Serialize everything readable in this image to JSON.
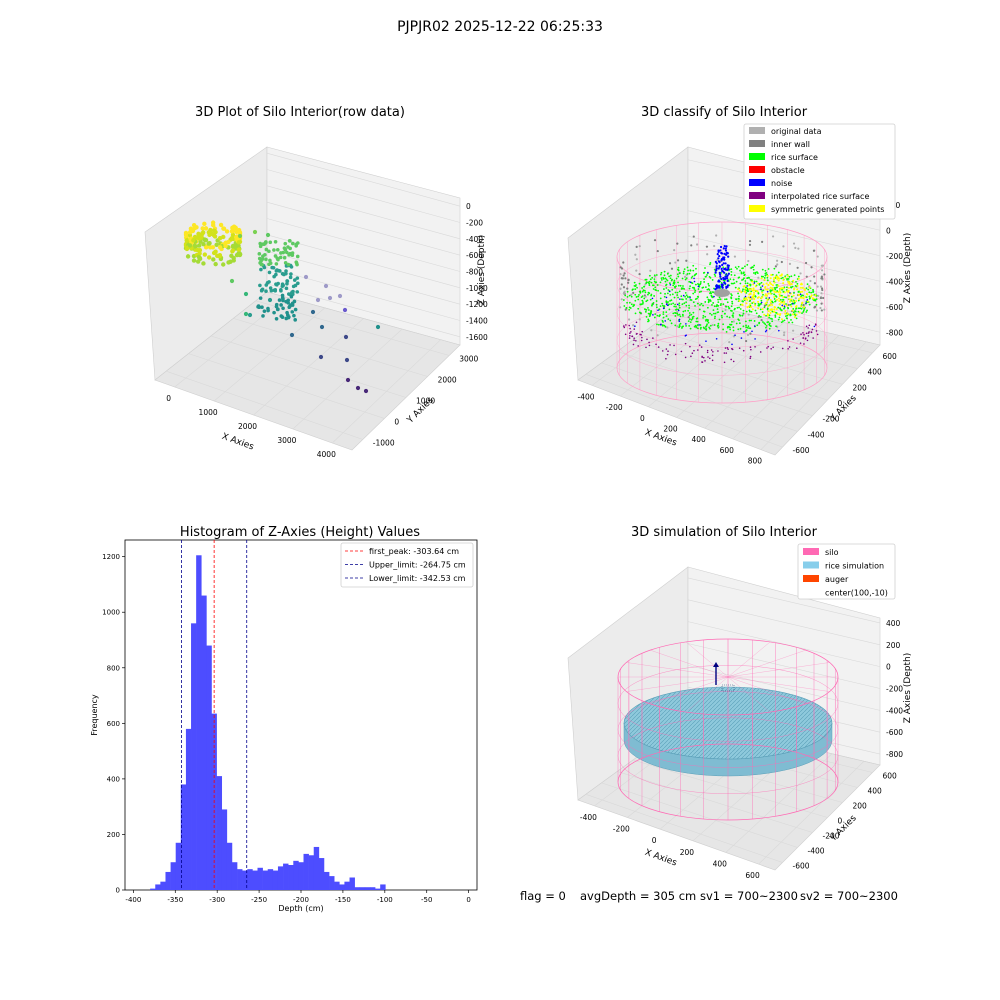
{
  "figure": {
    "suptitle": "PJPJR02 2025-12-22 06:25:33",
    "footer": {
      "flag": "flag = 0",
      "avg_depth": "avgDepth = 305 cm",
      "sv1": "sv1 = 700~2300",
      "sv2": "sv2 = 700~2300"
    }
  },
  "chart_data": [
    {
      "type": "scatter",
      "projection": "3d",
      "title": "3D Plot of Silo Interior(row data)",
      "xlabel": "X Axies",
      "ylabel": "Y Axies",
      "zlabel": "Z Axies (Depth)",
      "x_ticks": [
        "0",
        "1000",
        "2000",
        "3000",
        "4000"
      ],
      "y_ticks": [
        "-1000",
        "0",
        "1000",
        "2000",
        "3000"
      ],
      "z_ticks": [
        "0",
        "-200",
        "-400",
        "-600",
        "-800",
        "-1000",
        "-1200",
        "-1400",
        "-1600"
      ],
      "colormap": "viridis",
      "grid": true
    },
    {
      "type": "scatter",
      "projection": "3d",
      "title": "3D classify of Silo Interior",
      "xlabel": "X Axies",
      "ylabel": "Y Axies",
      "zlabel": "Z Axies (Depth)",
      "x_ticks": [
        "-400",
        "-200",
        "0",
        "200",
        "400",
        "600",
        "800"
      ],
      "y_ticks": [
        "-600",
        "-400",
        "-200",
        "0",
        "200",
        "400",
        "600"
      ],
      "z_ticks": [
        "200",
        "0",
        "-200",
        "-400",
        "-600",
        "-800"
      ],
      "legend_position": "upper-right",
      "legend": [
        {
          "label": "original data",
          "color": "#b0b0b0"
        },
        {
          "label": "inner wall",
          "color": "#808080"
        },
        {
          "label": "rice surface",
          "color": "#00ff00"
        },
        {
          "label": "obstacle",
          "color": "#ff0000"
        },
        {
          "label": "noise",
          "color": "#0000ff"
        },
        {
          "label": "interpolated rice surface",
          "color": "#800080"
        },
        {
          "label": "symmetric generated points",
          "color": "#ffff00"
        }
      ],
      "grid": true
    },
    {
      "type": "bar",
      "subtype": "histogram",
      "title": "Histogram of Z-Axies (Height) Values",
      "xlabel": "Depth (cm)",
      "ylabel": "Frequency",
      "xlim": [
        -410,
        10
      ],
      "ylim": [
        0,
        1260
      ],
      "x_ticks": [
        -400,
        -350,
        -300,
        -250,
        -200,
        -150,
        -100,
        -50,
        0
      ],
      "y_ticks": [
        0,
        200,
        400,
        600,
        800,
        1000,
        1200
      ],
      "bar_color": "#4d4dff",
      "bin_width": 6.1,
      "bins_start": -380,
      "values": [
        5,
        20,
        30,
        65,
        100,
        170,
        380,
        580,
        960,
        1205,
        1060,
        880,
        635,
        410,
        290,
        170,
        100,
        75,
        70,
        75,
        70,
        80,
        70,
        75,
        70,
        85,
        95,
        90,
        105,
        100,
        130,
        125,
        155,
        115,
        65,
        50,
        30,
        20,
        30,
        45,
        10,
        10,
        10,
        10,
        5,
        20
      ],
      "vlines": [
        {
          "label": "first_peak: -303.64 cm",
          "x": -303.64,
          "color": "#ff0000"
        },
        {
          "label": "Upper_limit: -264.75 cm",
          "x": -264.75,
          "color": "#00008b"
        },
        {
          "label": "Lower_limit: -342.53 cm",
          "x": -342.53,
          "color": "#00008b"
        }
      ],
      "legend_position": "upper-right"
    },
    {
      "type": "surface",
      "projection": "3d",
      "title": "3D simulation of Silo Interior",
      "xlabel": "X Axies",
      "ylabel": "Y Axies",
      "zlabel": "Z Axies (Depth)",
      "x_ticks": [
        "-400",
        "-200",
        "0",
        "200",
        "400",
        "600"
      ],
      "y_ticks": [
        "-600",
        "-400",
        "-200",
        "0",
        "200",
        "400",
        "600"
      ],
      "z_ticks": [
        "400",
        "200",
        "0",
        "-200",
        "-400",
        "-600",
        "-800"
      ],
      "legend_position": "upper-right",
      "legend": [
        {
          "label": "silo",
          "color": "#ff69b4"
        },
        {
          "label": "rice simulation",
          "color": "#87ceeb"
        },
        {
          "label": "auger",
          "color": "#ff4500"
        },
        {
          "label": "center(100,-10)",
          "color": ""
        }
      ],
      "grid": true
    }
  ]
}
